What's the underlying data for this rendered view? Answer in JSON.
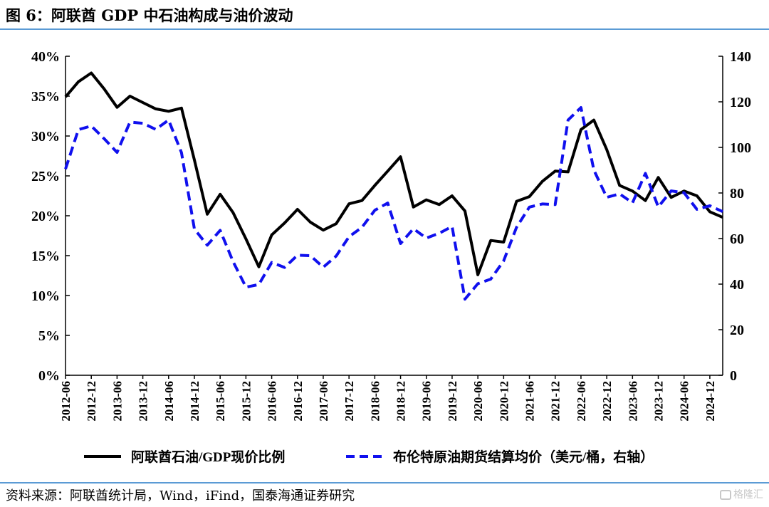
{
  "header": {
    "title": "图 6：阿联酋 GDP 中石油构成与油价波动"
  },
  "footer": {
    "source": "资料来源：阿联酋统计局，Wind，iFind，国泰海通证券研究",
    "watermark": "格隆汇"
  },
  "colors": {
    "series1": "#000000",
    "series2": "#1010ee",
    "rule": "#5b9bd5"
  },
  "chart_data": {
    "type": "line",
    "x": [
      "2012-06",
      "2012-09",
      "2012-12",
      "2013-03",
      "2013-06",
      "2013-09",
      "2013-12",
      "2014-03",
      "2014-06",
      "2014-09",
      "2014-12",
      "2015-03",
      "2015-06",
      "2015-09",
      "2015-12",
      "2016-03",
      "2016-06",
      "2016-09",
      "2016-12",
      "2017-03",
      "2017-06",
      "2017-09",
      "2017-12",
      "2018-03",
      "2018-06",
      "2018-09",
      "2018-12",
      "2019-03",
      "2019-06",
      "2019-09",
      "2019-12",
      "2020-03",
      "2020-06",
      "2020-09",
      "2020-12",
      "2021-03",
      "2021-06",
      "2021-09",
      "2021-12",
      "2022-03",
      "2022-06",
      "2022-09",
      "2022-12",
      "2023-03",
      "2023-06",
      "2023-09",
      "2023-12",
      "2024-03",
      "2024-06",
      "2024-09",
      "2024-12",
      "2025-03"
    ],
    "x_tick_labels": [
      "2012-06",
      "2012-12",
      "2013-06",
      "2013-12",
      "2014-06",
      "2014-12",
      "2015-06",
      "2015-12",
      "2016-06",
      "2016-12",
      "2017-06",
      "2017-12",
      "2018-06",
      "2018-12",
      "2019-06",
      "2019-12",
      "2020-06",
      "2020-12",
      "2021-06",
      "2021-12",
      "2022-06",
      "2022-12",
      "2023-06",
      "2023-12",
      "2024-06",
      "2024-12"
    ],
    "y_left": {
      "ticks": [
        "0%",
        "5%",
        "10%",
        "15%",
        "20%",
        "25%",
        "30%",
        "35%",
        "40%"
      ],
      "ylim": [
        0,
        40
      ]
    },
    "y_right": {
      "ticks": [
        "0",
        "20",
        "40",
        "60",
        "80",
        "100",
        "120",
        "140"
      ],
      "ylim": [
        0,
        140
      ]
    },
    "series": [
      {
        "name": "阿联酋石油/GDP现价比例",
        "axis": "left",
        "style": "solid",
        "values": [
          34.9,
          36.8,
          37.9,
          35.9,
          33.6,
          35.0,
          34.2,
          33.4,
          33.1,
          33.5,
          27.0,
          20.2,
          22.7,
          20.4,
          17.1,
          13.6,
          17.6,
          19.1,
          20.8,
          19.2,
          18.2,
          19.0,
          21.5,
          21.9,
          23.8,
          25.6,
          27.4,
          21.1,
          22.0,
          21.4,
          22.5,
          20.6,
          12.6,
          16.9,
          16.7,
          21.8,
          22.4,
          24.3,
          25.6,
          25.5,
          30.8,
          32.0,
          28.3,
          23.8,
          23.1,
          21.9,
          24.8,
          22.3,
          23.1,
          22.5,
          20.5,
          19.8
        ]
      },
      {
        "name": "布伦特原油期货结算均价（美元/桶，右轴）",
        "axis": "right",
        "style": "dashed",
        "values": [
          90.5,
          107.8,
          109.4,
          103.8,
          97.8,
          111.1,
          110.6,
          107.9,
          112.0,
          97.7,
          64.2,
          57.1,
          63.6,
          49.9,
          38.7,
          39.8,
          49.5,
          47.3,
          52.7,
          52.5,
          47.4,
          52.3,
          60.8,
          64.9,
          72.4,
          75.6,
          57.8,
          64.3,
          60.2,
          62.3,
          65.3,
          33.4,
          40.2,
          42.2,
          50.2,
          64.9,
          73.8,
          75.2,
          74.9,
          112.0,
          117.5,
          90.1,
          78.1,
          79.6,
          75.7,
          88.6,
          73.9,
          80.9,
          80.1,
          72.8,
          74.4,
          71.8
        ]
      }
    ],
    "legend": {
      "position": "bottom"
    },
    "grid": false
  }
}
